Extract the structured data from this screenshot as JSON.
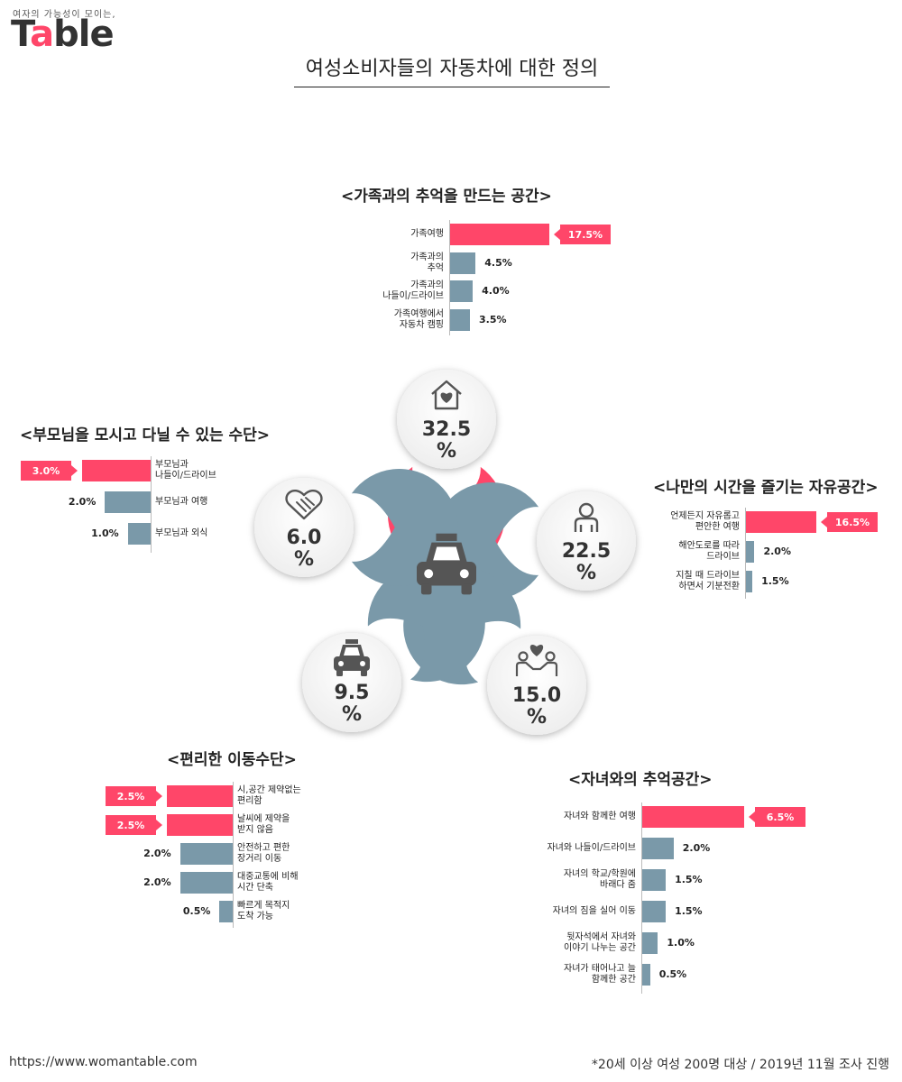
{
  "logo": {
    "tagline": "여자의 가능성이 모이는,",
    "word_prefix": "T",
    "word_accent": "a",
    "word_suffix": "ble"
  },
  "title": "여성소비자들의 자동차에 대한 정의",
  "colors": {
    "pink": "#ff4669",
    "blue": "#7a99a9"
  },
  "chart_data": {
    "type": "bar",
    "center_icon": "car-icon",
    "groups": [
      {
        "id": "family",
        "title": "<가족과의 추억을 만드는 공간>",
        "total_value": "32.5",
        "total_unit": "%",
        "icon": "house-heart-icon",
        "color": "pink",
        "items": [
          {
            "label": "가족여행",
            "value": 17.5,
            "value_text": "17.5%",
            "highlight": true
          },
          {
            "label": "가족과의\n추억",
            "value": 4.5,
            "value_text": "4.5%",
            "highlight": false
          },
          {
            "label": "가족과의\n나들이/드라이브",
            "value": 4.0,
            "value_text": "4.0%",
            "highlight": false
          },
          {
            "label": "가족여행에서\n자동차 캠핑",
            "value": 3.5,
            "value_text": "3.5%",
            "highlight": false
          }
        ]
      },
      {
        "id": "personal",
        "title": "<나만의 시간을 즐기는 자유공간>",
        "total_value": "22.5",
        "total_unit": "%",
        "icon": "person-icon",
        "color": "blue",
        "items": [
          {
            "label": "언제든지 자유롭고\n편안한 여행",
            "value": 16.5,
            "value_text": "16.5%",
            "highlight": true
          },
          {
            "label": "해안도로를 따라\n드라이브",
            "value": 2.0,
            "value_text": "2.0%",
            "highlight": false
          },
          {
            "label": "지칠 때 드라이브\n하면서 기분전환",
            "value": 1.5,
            "value_text": "1.5%",
            "highlight": false
          }
        ]
      },
      {
        "id": "children",
        "title": "<자녀와의 추억공간>",
        "total_value": "15.0",
        "total_unit": "%",
        "icon": "family-heart-icon",
        "color": "blue",
        "items": [
          {
            "label": "자녀와 함께한 여행",
            "value": 6.5,
            "value_text": "6.5%",
            "highlight": true
          },
          {
            "label": "자녀와 나들이/드라이브",
            "value": 2.0,
            "value_text": "2.0%",
            "highlight": false
          },
          {
            "label": "자녀의 학교/학원에\n바래다 줌",
            "value": 1.5,
            "value_text": "1.5%",
            "highlight": false
          },
          {
            "label": "자녀의 짐을 실어 이동",
            "value": 1.5,
            "value_text": "1.5%",
            "highlight": false
          },
          {
            "label": "뒷자석에서 자녀와\n이야기 나누는 공간",
            "value": 1.0,
            "value_text": "1.0%",
            "highlight": false
          },
          {
            "label": "자녀가 태어나고 늘\n함께한 공간",
            "value": 0.5,
            "value_text": "0.5%",
            "highlight": false
          }
        ]
      },
      {
        "id": "convenient",
        "title": "<편리한 이동수단>",
        "total_value": "9.5",
        "total_unit": "%",
        "icon": "car-icon",
        "color": "blue",
        "items": [
          {
            "label": "시,공간 제약없는\n편리함",
            "value": 2.5,
            "value_text": "2.5%",
            "highlight": true
          },
          {
            "label": "날씨에 제약을\n받지 않음",
            "value": 2.5,
            "value_text": "2.5%",
            "highlight": true
          },
          {
            "label": "안전하고 편한\n장거리 이동",
            "value": 2.0,
            "value_text": "2.0%",
            "highlight": false
          },
          {
            "label": "대중교통에 비해\n시간 단축",
            "value": 2.0,
            "value_text": "2.0%",
            "highlight": false
          },
          {
            "label": "빠르게 목적지\n도착 가능",
            "value": 0.5,
            "value_text": "0.5%",
            "highlight": false
          }
        ]
      },
      {
        "id": "parents",
        "title": "<부모님을 모시고 다닐 수 있는 수단>",
        "total_value": "6.0",
        "total_unit": "%",
        "icon": "handshake-heart-icon",
        "color": "blue",
        "items": [
          {
            "label": "부모님과\n나들이/드라이브",
            "value": 3.0,
            "value_text": "3.0%",
            "highlight": true
          },
          {
            "label": "부모님과 여행",
            "value": 2.0,
            "value_text": "2.0%",
            "highlight": false
          },
          {
            "label": "부모님과 외식",
            "value": 1.0,
            "value_text": "1.0%",
            "highlight": false
          }
        ]
      }
    ]
  },
  "footer": {
    "url": "https://www.womantable.com",
    "note": "*20세 이상 여성 200명 대상 / 2019년 11월 조사 진행"
  }
}
